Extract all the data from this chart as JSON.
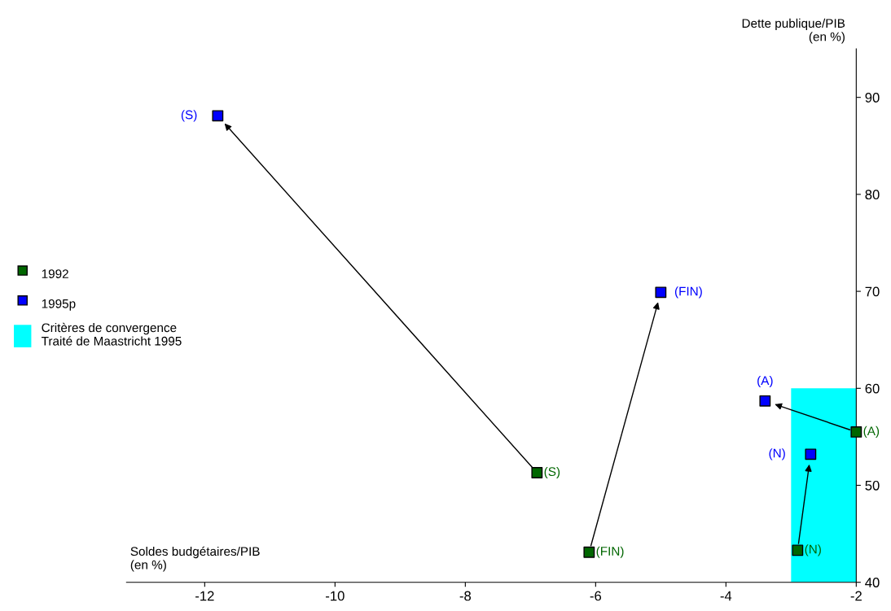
{
  "chart_data": {
    "type": "scatter",
    "xlabel": "Soldes budgétaires/PIB\n(en %)",
    "ylabel": "Dette publique/PIB\n(en %)",
    "xlim": [
      -13.2,
      -2
    ],
    "xticks": [
      -12,
      -10,
      -8,
      -6,
      -4,
      -2
    ],
    "ylim": [
      40,
      95
    ],
    "yticks": [
      40,
      50,
      60,
      70,
      80,
      90
    ],
    "grid": false,
    "legend": "left",
    "series": [
      {
        "name": "1992",
        "marker": "square",
        "color": "#006600",
        "x": [
          -6.9,
          -6.1,
          -2,
          -2.9
        ],
        "values": [
          51.3,
          43.1,
          55.5,
          43.3
        ],
        "value_labels": [
          "(S)",
          "(FIN)",
          "(A)",
          "(N)"
        ]
      },
      {
        "name": "1995p",
        "marker": "square",
        "color": "#0000ff",
        "x": [
          -11.8,
          -5.0,
          -3.4,
          -2.7
        ],
        "values": [
          88.1,
          69.9,
          58.7,
          53.2
        ],
        "value_labels": [
          "(S)",
          "(FIN)",
          "(A)",
          "(N)"
        ]
      },
      {
        "name": "Critères de convergence\nTraité de Maastricht 1995",
        "type": "area",
        "color": "#00ffff",
        "x": [
          -3,
          -2
        ],
        "values": [
          60,
          60
        ]
      }
    ]
  }
}
